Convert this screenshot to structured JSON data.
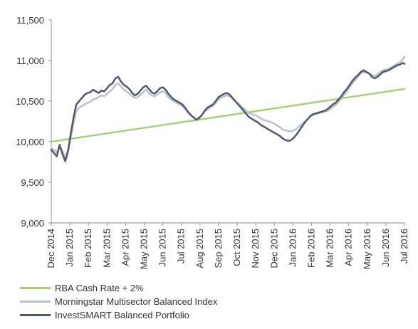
{
  "chart_data": {
    "type": "line",
    "title": "",
    "xlabel": "",
    "ylabel": "",
    "ylim": [
      9000,
      11500
    ],
    "yticks": [
      9000,
      9500,
      10000,
      10500,
      11000,
      11500
    ],
    "ytick_labels": [
      "9,000",
      "9,500",
      "10,000",
      "10,500",
      "11,000",
      "11,500"
    ],
    "xtick_labels": [
      "Dec 2014",
      "Jan 2015",
      "Feb 2015",
      "Mar 2015",
      "Apr 2015",
      "May 2015",
      "Jun 2015",
      "Jul 2015",
      "Aug 2015",
      "Sep 2015",
      "Oct 2015",
      "Nov 2015",
      "Dec 2015",
      "Jan 2016",
      "Feb 2016",
      "Mar 2016",
      "Apr 2016",
      "May 2016",
      "Jun 2016",
      "Jul 2016"
    ],
    "x_months_from_start": [
      0,
      1,
      2,
      3,
      4,
      5,
      6,
      7,
      8,
      9,
      10,
      11,
      12,
      13,
      14,
      15,
      16,
      17,
      18,
      19
    ],
    "legend_position": "bottom-left",
    "grid": false,
    "series": [
      {
        "name": "RBA Cash Rate + 2%",
        "color": "#a9cf7b",
        "width": 2.5,
        "x": [
          0,
          19
        ],
        "values": [
          10000,
          10650
        ]
      },
      {
        "name": "Morningstar Multisector Balanced Index",
        "color": "#b9c2cb",
        "width": 2.5,
        "x": [
          0,
          0.15,
          0.3,
          0.45,
          0.6,
          0.75,
          0.9,
          1.05,
          1.2,
          1.35,
          1.5,
          1.65,
          1.8,
          1.95,
          2.1,
          2.25,
          2.4,
          2.55,
          2.7,
          2.85,
          3.0,
          3.15,
          3.3,
          3.45,
          3.6,
          3.75,
          3.9,
          4.05,
          4.2,
          4.35,
          4.5,
          4.65,
          4.8,
          4.95,
          5.1,
          5.25,
          5.4,
          5.55,
          5.7,
          5.85,
          6.0,
          6.15,
          6.3,
          6.45,
          6.6,
          6.75,
          6.9,
          7.05,
          7.2,
          7.35,
          7.5,
          7.65,
          7.8,
          7.95,
          8.1,
          8.25,
          8.4,
          8.55,
          8.7,
          8.85,
          9.0,
          9.15,
          9.3,
          9.45,
          9.6,
          9.75,
          9.9,
          10.05,
          10.2,
          10.35,
          10.5,
          10.65,
          10.8,
          10.95,
          11.1,
          11.25,
          11.4,
          11.55,
          11.7,
          11.85,
          12.0,
          12.15,
          12.3,
          12.45,
          12.6,
          12.75,
          12.9,
          13.05,
          13.2,
          13.35,
          13.5,
          13.65,
          13.8,
          13.95,
          14.1,
          14.25,
          14.4,
          14.55,
          14.7,
          14.85,
          15.0,
          15.15,
          15.3,
          15.45,
          15.6,
          15.75,
          15.9,
          16.05,
          16.2,
          16.35,
          16.5,
          16.65,
          16.8,
          16.95,
          17.1,
          17.25,
          17.4,
          17.55,
          17.7,
          17.85,
          18.0,
          18.15,
          18.3,
          18.45,
          18.6,
          18.75,
          18.9,
          19.0
        ],
        "values": [
          9920,
          9900,
          9870,
          9950,
          9880,
          9800,
          9900,
          10050,
          10230,
          10380,
          10420,
          10440,
          10460,
          10480,
          10490,
          10520,
          10530,
          10550,
          10570,
          10560,
          10590,
          10620,
          10650,
          10700,
          10720,
          10680,
          10640,
          10620,
          10590,
          10560,
          10540,
          10550,
          10580,
          10610,
          10640,
          10600,
          10570,
          10560,
          10580,
          10610,
          10620,
          10600,
          10550,
          10520,
          10500,
          10480,
          10460,
          10440,
          10400,
          10360,
          10330,
          10300,
          10280,
          10300,
          10330,
          10370,
          10400,
          10420,
          10440,
          10480,
          10520,
          10540,
          10560,
          10570,
          10560,
          10530,
          10500,
          10470,
          10440,
          10410,
          10380,
          10350,
          10340,
          10330,
          10310,
          10290,
          10270,
          10260,
          10250,
          10240,
          10220,
          10200,
          10180,
          10150,
          10140,
          10130,
          10130,
          10140,
          10160,
          10190,
          10220,
          10250,
          10280,
          10310,
          10330,
          10340,
          10350,
          10360,
          10370,
          10380,
          10400,
          10430,
          10450,
          10490,
          10530,
          10580,
          10620,
          10670,
          10720,
          10760,
          10800,
          10840,
          10860,
          10850,
          10840,
          10820,
          10810,
          10830,
          10860,
          10880,
          10890,
          10900,
          10920,
          10940,
          10960,
          10980,
          11010,
          11050
        ]
      },
      {
        "name": "InvestSMART Balanced Portfolio",
        "color": "#4e5a6c",
        "width": 2.5,
        "x": [
          0,
          0.15,
          0.3,
          0.45,
          0.6,
          0.75,
          0.9,
          1.05,
          1.2,
          1.35,
          1.5,
          1.65,
          1.8,
          1.95,
          2.1,
          2.25,
          2.4,
          2.55,
          2.7,
          2.85,
          3.0,
          3.15,
          3.3,
          3.45,
          3.6,
          3.75,
          3.9,
          4.05,
          4.2,
          4.35,
          4.5,
          4.65,
          4.8,
          4.95,
          5.1,
          5.25,
          5.4,
          5.55,
          5.7,
          5.85,
          6.0,
          6.15,
          6.3,
          6.45,
          6.6,
          6.75,
          6.9,
          7.05,
          7.2,
          7.35,
          7.5,
          7.65,
          7.8,
          7.95,
          8.1,
          8.25,
          8.4,
          8.55,
          8.7,
          8.85,
          9.0,
          9.15,
          9.3,
          9.45,
          9.6,
          9.75,
          9.9,
          10.05,
          10.2,
          10.35,
          10.5,
          10.65,
          10.8,
          10.95,
          11.1,
          11.25,
          11.4,
          11.55,
          11.7,
          11.85,
          12.0,
          12.15,
          12.3,
          12.45,
          12.6,
          12.75,
          12.9,
          13.05,
          13.2,
          13.35,
          13.5,
          13.65,
          13.8,
          13.95,
          14.1,
          14.25,
          14.4,
          14.55,
          14.7,
          14.85,
          15.0,
          15.15,
          15.3,
          15.45,
          15.6,
          15.75,
          15.9,
          16.05,
          16.2,
          16.35,
          16.5,
          16.65,
          16.8,
          16.95,
          17.1,
          17.25,
          17.4,
          17.55,
          17.7,
          17.85,
          18.0,
          18.15,
          18.3,
          18.45,
          18.6,
          18.75,
          18.9,
          19.0
        ],
        "values": [
          9900,
          9860,
          9820,
          9960,
          9850,
          9760,
          9880,
          10100,
          10300,
          10460,
          10500,
          10540,
          10580,
          10600,
          10610,
          10640,
          10620,
          10600,
          10630,
          10620,
          10660,
          10700,
          10720,
          10780,
          10800,
          10740,
          10700,
          10680,
          10650,
          10600,
          10570,
          10590,
          10630,
          10670,
          10690,
          10650,
          10610,
          10590,
          10620,
          10660,
          10670,
          10640,
          10590,
          10550,
          10520,
          10500,
          10480,
          10460,
          10420,
          10370,
          10330,
          10300,
          10270,
          10290,
          10330,
          10380,
          10420,
          10440,
          10460,
          10500,
          10550,
          10570,
          10590,
          10600,
          10580,
          10540,
          10500,
          10460,
          10420,
          10380,
          10340,
          10300,
          10280,
          10260,
          10240,
          10210,
          10190,
          10170,
          10150,
          10130,
          10110,
          10090,
          10070,
          10040,
          10020,
          10010,
          10020,
          10050,
          10090,
          10140,
          10190,
          10240,
          10280,
          10320,
          10340,
          10350,
          10360,
          10370,
          10380,
          10400,
          10430,
          10460,
          10480,
          10520,
          10560,
          10610,
          10650,
          10700,
          10750,
          10790,
          10820,
          10860,
          10880,
          10860,
          10840,
          10800,
          10780,
          10800,
          10830,
          10860,
          10870,
          10880,
          10900,
          10920,
          10940,
          10950,
          10970,
          10960
        ]
      }
    ]
  }
}
